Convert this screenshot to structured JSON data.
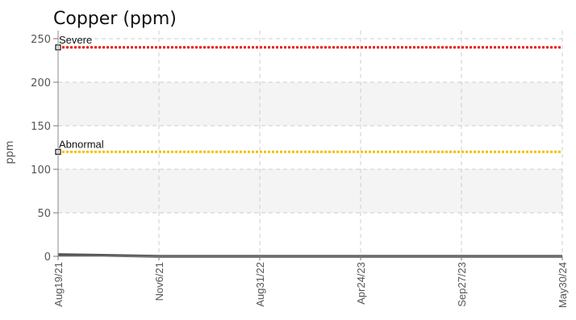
{
  "chart_data": {
    "type": "line",
    "title": "Copper (ppm)",
    "xlabel": "",
    "ylabel": "ppm",
    "ylim": [
      0,
      250
    ],
    "yticks": [
      0,
      50,
      100,
      150,
      200,
      250
    ],
    "x": [
      "Aug19/21",
      "Nov6/21",
      "Aug31/22",
      "Apr24/23",
      "Sep27/23",
      "May30/24"
    ],
    "series": [
      {
        "values": [
          2,
          0,
          0,
          0,
          0,
          0
        ],
        "color": "#555555"
      }
    ],
    "thresholds": [
      {
        "label": "Severe",
        "value": 240,
        "color": "#ee1111"
      },
      {
        "label": "Abnormal",
        "value": 120,
        "color": "#f2c200"
      }
    ],
    "grid": true,
    "band_color": "#f4f4f4"
  }
}
